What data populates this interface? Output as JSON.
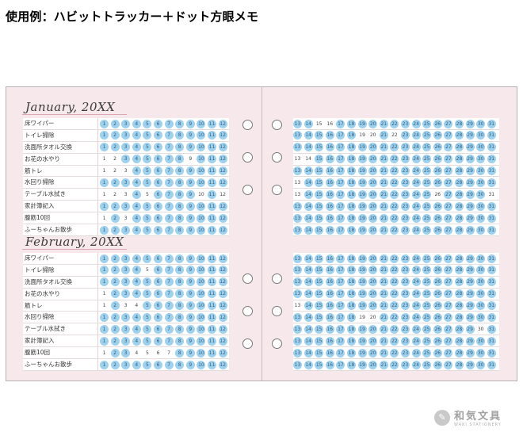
{
  "page_title": "使用例：ハビットトラッカー＋ドット方眼メモ",
  "months": [
    {
      "name": "January, 20XX",
      "habits": [
        "床ワイパー",
        "トイレ掃除",
        "洗面所タオル交換",
        "お花の水やり",
        "筋トレ",
        "水回り掃除",
        "テーブル水拭き",
        "家計簿記入",
        "腹筋10回",
        "ふーちゃんお散歩"
      ],
      "done_left": [
        [
          1,
          2,
          3,
          4,
          5,
          6,
          7,
          8,
          9,
          10,
          11,
          12
        ],
        [
          1,
          2,
          3,
          4,
          5,
          6,
          7,
          8,
          9,
          10,
          11,
          12
        ],
        [
          1,
          2,
          3,
          4,
          5,
          6,
          7,
          8,
          9,
          10,
          11,
          12
        ],
        [
          3,
          4,
          5,
          6,
          7,
          8,
          10,
          11,
          12
        ],
        [
          4,
          5,
          6,
          7,
          8,
          9,
          10,
          11,
          12
        ],
        [
          1,
          2,
          3,
          4,
          5,
          6,
          7,
          8,
          9,
          10,
          11,
          12
        ],
        [
          4,
          6,
          7,
          8,
          9,
          11
        ],
        [
          1,
          2,
          3,
          4,
          5,
          6,
          7,
          8,
          9,
          10,
          11,
          12
        ],
        [
          2,
          4,
          5,
          6,
          7,
          8,
          9,
          10,
          11,
          12
        ],
        [
          1,
          2,
          3,
          4,
          5,
          6,
          7,
          8,
          9,
          10,
          11,
          12
        ]
      ],
      "done_right": [
        [
          13,
          14,
          17,
          18,
          19,
          20,
          21,
          22,
          23,
          24,
          25,
          26,
          27,
          28,
          29,
          30,
          31
        ],
        [
          13,
          14,
          15,
          16,
          17,
          18,
          21,
          23,
          24,
          25,
          26,
          27,
          28,
          29,
          30,
          31
        ],
        [
          13,
          14,
          15,
          16,
          17,
          18,
          19,
          20,
          21,
          22,
          23,
          24,
          25,
          26,
          27,
          28,
          29,
          30,
          31
        ],
        [
          15,
          16,
          17,
          18,
          19,
          20,
          21,
          22,
          23,
          24,
          25,
          26,
          27,
          28,
          29,
          30,
          31
        ],
        [
          13,
          14,
          15,
          16,
          17,
          18,
          19,
          20,
          21,
          22,
          23,
          24,
          25,
          26,
          27,
          28,
          29,
          30,
          31
        ],
        [
          14,
          15,
          16,
          17,
          18,
          19,
          20,
          21,
          22,
          23,
          24,
          25,
          26,
          27,
          28,
          29,
          30,
          31
        ],
        [
          14,
          15,
          16,
          17,
          18,
          19,
          20,
          21,
          22,
          23,
          24,
          25,
          27,
          28,
          29,
          30
        ],
        [
          13,
          14,
          15,
          16,
          17,
          18,
          19,
          20,
          21,
          22,
          23,
          24,
          25,
          26,
          27,
          28,
          29,
          30,
          31
        ],
        [
          13,
          14,
          15,
          16,
          17,
          18,
          19,
          20,
          21,
          22,
          23,
          24,
          25,
          26,
          27,
          28,
          29,
          30,
          31
        ],
        [
          13,
          14,
          15,
          16,
          17,
          18,
          19,
          20,
          21,
          22,
          23,
          24,
          25,
          26,
          27,
          28,
          29,
          30,
          31
        ]
      ]
    },
    {
      "name": "February, 20XX",
      "habits": [
        "床ワイパー",
        "トイレ掃除",
        "洗面所タオル交換",
        "お花の水やり",
        "筋トレ",
        "水回り掃除",
        "テーブル水拭き",
        "家計簿記入",
        "腹筋10回",
        "ふーちゃんお散歩"
      ],
      "done_left": [
        [
          1,
          2,
          3,
          4,
          5,
          6,
          7,
          8,
          9,
          10,
          11,
          12
        ],
        [
          1,
          2,
          3,
          4,
          6,
          7,
          8,
          9,
          10,
          11,
          12
        ],
        [
          1,
          2,
          3,
          4,
          5,
          6,
          7,
          8,
          9,
          10,
          11,
          12
        ],
        [
          2,
          3,
          4,
          5,
          6,
          7,
          8,
          9,
          10,
          11,
          12
        ],
        [
          2,
          5,
          6,
          7,
          8,
          9,
          10,
          11,
          12
        ],
        [
          1,
          2,
          3,
          4,
          5,
          6,
          7,
          8,
          9,
          10,
          11,
          12
        ],
        [
          1,
          2,
          3,
          4,
          5,
          6,
          7,
          8,
          9,
          10,
          11,
          12
        ],
        [
          1,
          2,
          3,
          4,
          5,
          6,
          7,
          8,
          9,
          10,
          11,
          12
        ],
        [
          2,
          3,
          8,
          9,
          10,
          11,
          12
        ],
        [
          1,
          2,
          3,
          4,
          5,
          6,
          7,
          8,
          9,
          10,
          11,
          12
        ]
      ],
      "done_right": [
        [
          13,
          14,
          15,
          16,
          17,
          18,
          19,
          20,
          21,
          22,
          23,
          24,
          25,
          26,
          27,
          28,
          29,
          30,
          31
        ],
        [
          13,
          14,
          15,
          16,
          17,
          18,
          19,
          20,
          21,
          22,
          23,
          24,
          25,
          26,
          27,
          28,
          29,
          30,
          31
        ],
        [
          13,
          14,
          15,
          16,
          17,
          18,
          19,
          20,
          21,
          22,
          23,
          24,
          25,
          26,
          27,
          28,
          29,
          30,
          31
        ],
        [
          13,
          14,
          15,
          16,
          17,
          18,
          19,
          20,
          21,
          22,
          23,
          24,
          25,
          26,
          27,
          28,
          29,
          30,
          31
        ],
        [
          14,
          15,
          16,
          17,
          18,
          19,
          20,
          21,
          22,
          23,
          24,
          25,
          26,
          27,
          28,
          29,
          30,
          31
        ],
        [
          13,
          14,
          15,
          16,
          17,
          18,
          21,
          22,
          23,
          24,
          25,
          26,
          27,
          28,
          29,
          30,
          31
        ],
        [
          13,
          14,
          15,
          16,
          17,
          18,
          19,
          20,
          21,
          22,
          23,
          24,
          25,
          26,
          27,
          28,
          29,
          31
        ],
        [
          13,
          14,
          15,
          16,
          17,
          18,
          19,
          20,
          21,
          22,
          23,
          24,
          25,
          26,
          27,
          28,
          29,
          30,
          31
        ],
        [
          13,
          14,
          15,
          16,
          17,
          18,
          19,
          20,
          21,
          22,
          23,
          24,
          25,
          26,
          27,
          28,
          29,
          30,
          31
        ],
        [
          13,
          14,
          15,
          16,
          17,
          18,
          19,
          20,
          21,
          22,
          23,
          24,
          25,
          26,
          27,
          28,
          29,
          30,
          31
        ]
      ]
    }
  ],
  "days_left": [
    1,
    2,
    3,
    4,
    5,
    6,
    7,
    8,
    9,
    10,
    11,
    12
  ],
  "days_right": [
    13,
    14,
    15,
    16,
    17,
    18,
    19,
    20,
    21,
    22,
    23,
    24,
    25,
    26,
    27,
    28,
    29,
    30,
    31
  ],
  "colors": {
    "page": "#f7e8ec",
    "dot_done": "#9fd0ec",
    "accent_line": "#d8a8b4"
  },
  "logo": {
    "main": "和気文具",
    "sub": "WAKI STATIONERY",
    "icon": "leaf-icon"
  }
}
